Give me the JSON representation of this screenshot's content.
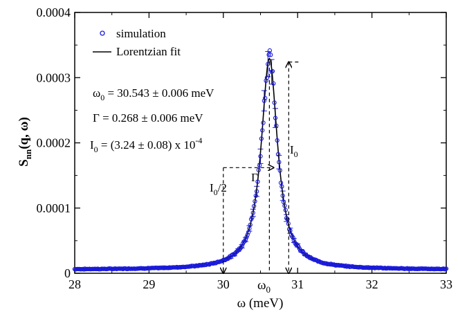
{
  "chart_data": {
    "type": "scatter",
    "xlabel": "ω (meV)",
    "ylabel": "S_nn(q, ω)",
    "xlim": [
      28,
      33
    ],
    "ylim": [
      0,
      0.0004
    ],
    "x_ticks": [
      "28",
      "29",
      "30",
      "31",
      "32",
      "33"
    ],
    "y_ticks": [
      "0",
      "0.0001",
      "0.0002",
      "0.0003",
      "0.0004"
    ],
    "legend": {
      "placement": "top-left",
      "entries": [
        "simulation",
        "Lorentzian fit"
      ]
    },
    "series": [
      {
        "name": "simulation",
        "marker": "open-circle",
        "color": "#1a1adb",
        "error_bars": true,
        "model": {
          "kind": "lorentzian",
          "omega0": 30.543,
          "gamma": 0.268,
          "I0": 0.000324,
          "noise": 0.04
        }
      },
      {
        "name": "Lorentzian fit",
        "line": "solid",
        "color": "#000000",
        "model": {
          "kind": "lorentzian",
          "omega0": 30.543,
          "gamma": 0.268,
          "I0": 0.000324
        }
      }
    ],
    "annotations": {
      "omega0_text": "ω",
      "omega0_sub": "0",
      "omega0_rest": " = 30.543 ± 0.006 meV",
      "gamma_text": "Γ = 0.268 ± 0.006 meV",
      "I0_text": "I",
      "I0_sub": "0",
      "I0_rest": " = (3.24 ± 0.08) x 10",
      "I0_exp": "-4",
      "half_label": "I",
      "half_sub": "0",
      "half_rest": "/2",
      "gamma_arrow_label": "Γ",
      "I0_arrow_label": "I",
      "I0_arrow_sub": "0",
      "omega0_tick_label": "ω",
      "omega0_tick_sub": "0"
    },
    "markers": {
      "half_left_x": 30.0,
      "half_right_x": 30.63,
      "half_y": 0.000162,
      "center_x": 30.62,
      "peak_x": 30.88,
      "peak_y": 0.000324
    }
  }
}
